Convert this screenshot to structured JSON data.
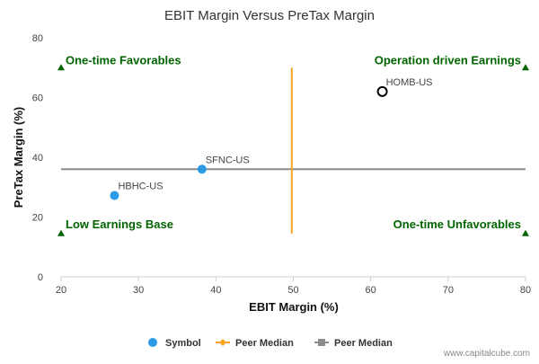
{
  "chart_data": {
    "type": "scatter",
    "title": "EBIT Margin Versus PreTax Margin",
    "xlabel": "EBIT Margin (%)",
    "ylabel": "PreTax Margin (%)",
    "xlim": [
      20,
      80
    ],
    "ylim": [
      0,
      80
    ],
    "xticks": [
      "20",
      "30",
      "40",
      "50",
      "60",
      "70",
      "80"
    ],
    "yticks": [
      "0",
      "20",
      "40",
      "60",
      "80"
    ],
    "grid": false,
    "points": [
      {
        "label": "HBHC-US",
        "x": 26.9,
        "y": 27.2,
        "style": "filled"
      },
      {
        "label": "SFNC-US",
        "x": 38.2,
        "y": 36.0,
        "style": "filled"
      },
      {
        "label": "HOMB-US",
        "x": 61.5,
        "y": 62.0,
        "style": "hollow"
      }
    ],
    "peer_median_x": {
      "value": 49.8,
      "from_y": 14.5,
      "to_y": 70
    },
    "peer_median_y": {
      "value": 36.0,
      "from_x": 20,
      "to_x": 80
    },
    "quadrants": [
      {
        "label": "One-time Favorables",
        "corner": "top-left"
      },
      {
        "label": "Operation driven Earnings",
        "corner": "top-right"
      },
      {
        "label": "Low Earnings Base",
        "corner": "bottom-left"
      },
      {
        "label": "One-time Unfavorables",
        "corner": "bottom-right"
      }
    ],
    "legend_position": "bottom-center",
    "legend": [
      {
        "label": "Symbol",
        "marker": "circle"
      },
      {
        "label": "Peer Median",
        "marker": "diamond-line"
      },
      {
        "label": "Peer Median",
        "marker": "square-line"
      }
    ],
    "colors": {
      "point": "#2b9be8",
      "hollow_point_stroke": "#000000",
      "peer_median_vertical": "#f5a623",
      "peer_median_horizontal": "#8c8c8c",
      "quadrant_label": "#006400",
      "quadrant_marker": "#006400"
    }
  },
  "credit": "www.capitalcube.com"
}
